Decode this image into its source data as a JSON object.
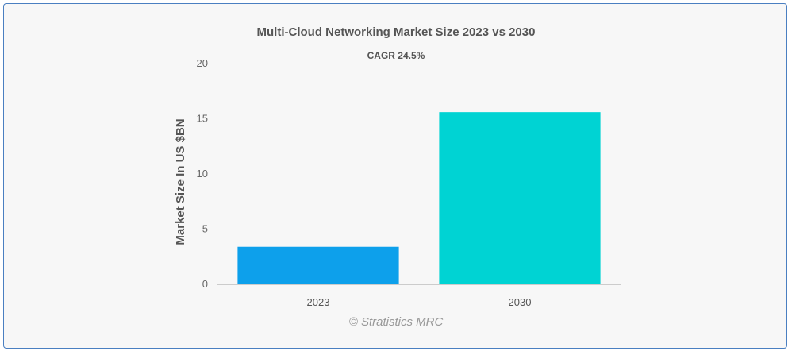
{
  "chart_data": {
    "type": "bar",
    "title": "Multi-Cloud Networking Market Size 2023 vs 2030",
    "subtitle": "CAGR 24.5%",
    "categories": [
      "2023",
      "2030"
    ],
    "values": [
      3.4,
      15.6
    ],
    "xlabel": "",
    "ylabel": "Market Size In US $BN",
    "ylim": [
      0,
      20
    ],
    "yticks": [
      0,
      5,
      10,
      15,
      20
    ],
    "grid": false,
    "legend": "none",
    "colors": [
      "#0da0eb",
      "#00d3d3"
    ],
    "credit": "© Stratistics MRC"
  }
}
